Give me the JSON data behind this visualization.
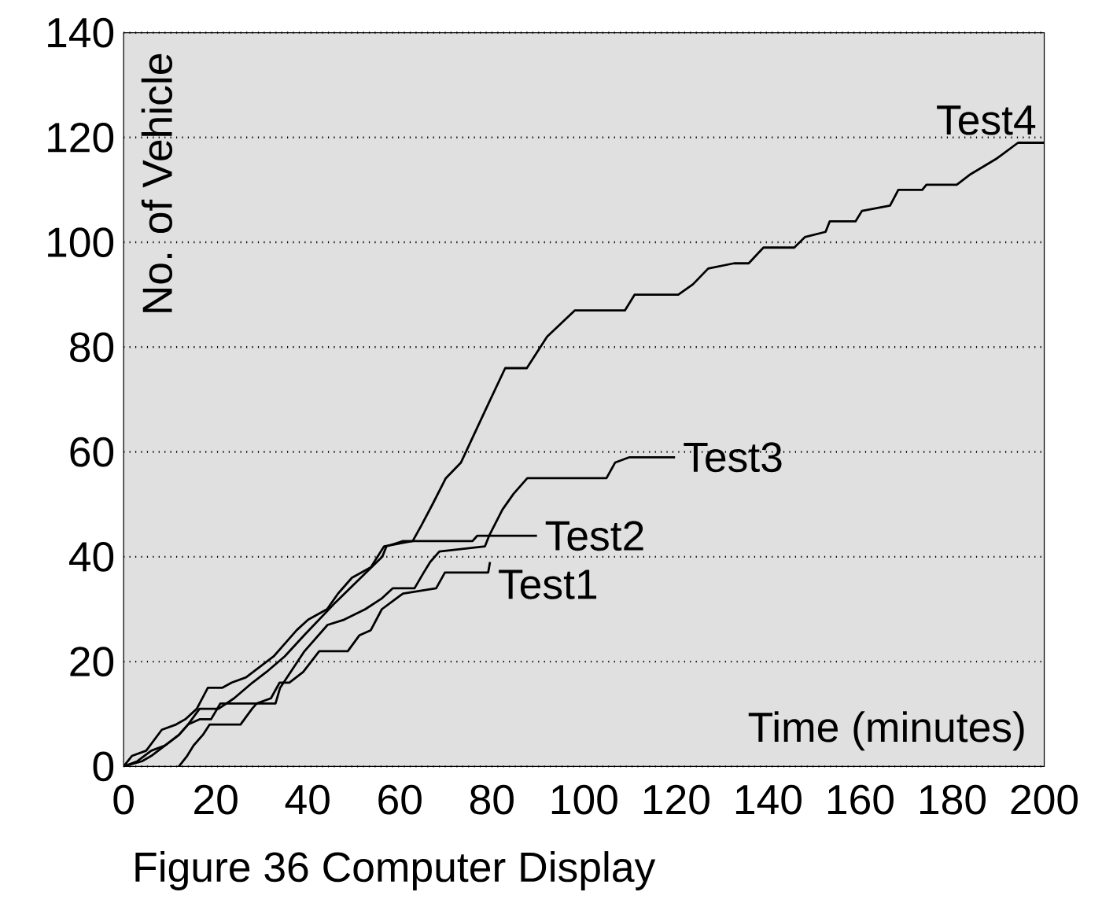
{
  "chart_data": {
    "type": "line",
    "xlabel": "Time  (minutes)",
    "ylabel": "No. of Vehicle",
    "xlim": [
      0,
      200
    ],
    "ylim": [
      0,
      140
    ],
    "xticks": [
      0,
      20,
      40,
      60,
      80,
      100,
      120,
      140,
      160,
      180,
      200
    ],
    "yticks": [
      0,
      20,
      40,
      60,
      80,
      100,
      120,
      140
    ],
    "grid": "y",
    "legend": false,
    "marker": "none",
    "line_style": "solid",
    "annotations": [
      "Figure 36 Computer Display"
    ],
    "series": [
      {
        "name": "Test1",
        "color": "#000000",
        "x": [
          12,
          13.8,
          15.2,
          17.2,
          18.7,
          25.4,
          27.9,
          28.9,
          32,
          33.9,
          36,
          39,
          42.5,
          48.7,
          51.2,
          53.7,
          56.1,
          60.7,
          67.9,
          69.8,
          79.2,
          79.6
        ],
        "values": [
          0,
          2,
          4,
          6,
          8,
          8,
          11,
          12,
          13,
          16,
          16,
          18,
          22,
          22,
          25,
          26,
          30,
          33,
          34,
          37,
          37,
          39
        ]
      },
      {
        "name": "Test2",
        "color": "#000000",
        "x": [
          0,
          3,
          6,
          9,
          12,
          14,
          16.5,
          20.6,
          24,
          28,
          31,
          35,
          39.2,
          45.7,
          52.7,
          56.2,
          57.1,
          60.7,
          75.8,
          76.8,
          89.8
        ],
        "values": [
          0,
          1,
          3,
          4,
          6,
          8,
          11,
          11,
          13,
          16,
          18,
          21,
          25,
          31,
          37,
          40,
          42,
          43,
          43,
          44,
          44
        ]
      },
      {
        "name": "Test3",
        "color": "#000000",
        "x": [
          0,
          4,
          6,
          9,
          12,
          14,
          16.5,
          19,
          21,
          33,
          34,
          39.3,
          44.3,
          47.9,
          52.5,
          56,
          58.5,
          63.2,
          65.2,
          66.6,
          68.6,
          78.5,
          79.4,
          82.3,
          84.7,
          87.7,
          104.9,
          106.8,
          109.9,
          119.8
        ],
        "values": [
          0,
          1,
          2,
          4,
          6,
          8,
          9,
          9,
          12,
          12,
          15,
          22,
          27,
          28,
          30,
          32,
          34,
          34,
          37,
          39,
          41,
          42,
          44,
          49,
          52,
          55,
          55,
          58,
          59,
          59
        ]
      },
      {
        "name": "Test4",
        "color": "#000000",
        "x": [
          0,
          1.8,
          4.9,
          8.3,
          11.4,
          13.4,
          15.9,
          18.3,
          21.4,
          23.5,
          26.6,
          29.6,
          32.6,
          34.6,
          37.6,
          40.1,
          44.2,
          46.6,
          49.6,
          53.7,
          56.6,
          62.8,
          64.7,
          67.1,
          70,
          73.3,
          78.6,
          82.9,
          87.6,
          92,
          98,
          108.9,
          111,
          120.5,
          123.7,
          127,
          132.6,
          135.8,
          139,
          145.7,
          148,
          152.5,
          153.4,
          159,
          160.4,
          166.5,
          168.3,
          173.5,
          174.4,
          181,
          184,
          189.7,
          194.3,
          200
        ],
        "values": [
          0,
          2,
          3,
          7,
          8,
          9,
          11,
          15,
          15,
          16,
          17,
          19,
          21,
          23,
          26,
          28,
          30,
          33,
          36,
          38,
          42,
          43,
          46,
          50,
          55,
          58,
          68,
          76,
          76,
          82,
          87,
          87,
          90,
          90,
          92,
          95,
          96,
          96,
          99,
          99,
          101,
          102,
          104,
          104,
          106,
          107,
          110,
          110,
          111,
          111,
          113,
          116,
          119,
          119
        ]
      }
    ]
  }
}
